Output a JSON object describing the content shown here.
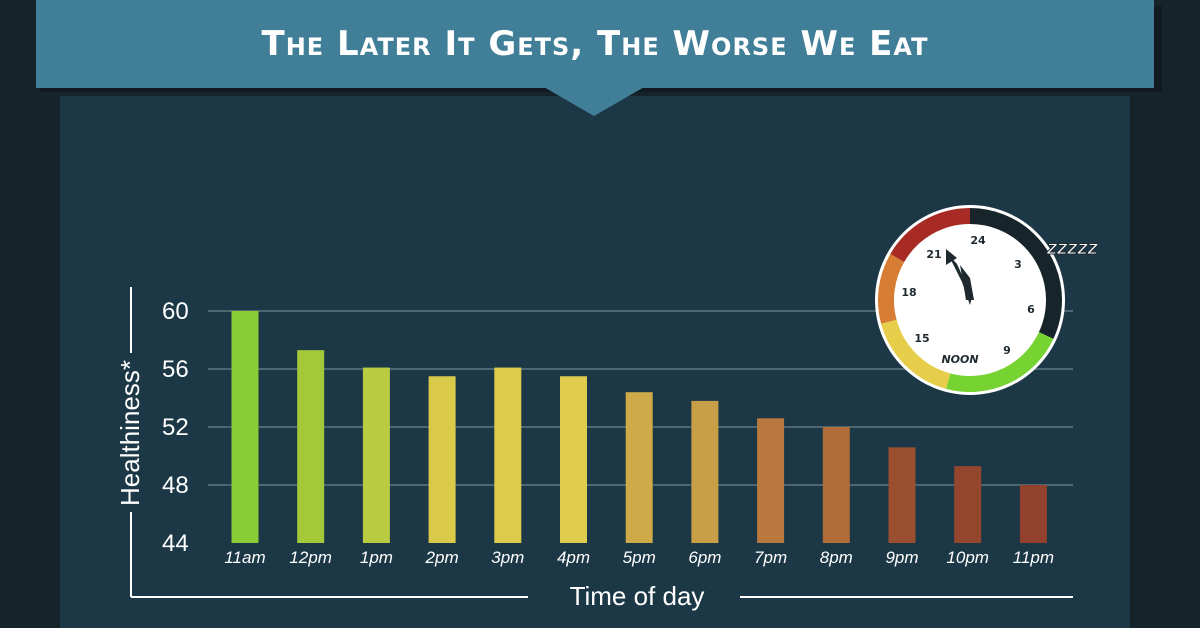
{
  "header": {
    "title": "The Later It Gets, The Worse We Eat"
  },
  "colors": {
    "background": "#15232a",
    "panel": "#1c3746",
    "banner": "#417e98",
    "grid": "#4f6570",
    "text": "#ffffff"
  },
  "clock": {
    "labels": [
      "24",
      "3",
      "6",
      "9",
      "NOON",
      "15",
      "18",
      "21"
    ],
    "zzz": "ZZZZZ",
    "colors": {
      "night": "#17252b",
      "morning": "#77d331",
      "afternoon": "#e6ce4a",
      "evening": "#d67d33",
      "late": "#a82a24"
    }
  },
  "chart_data": {
    "type": "bar",
    "categories": [
      "11am",
      "12pm",
      "1pm",
      "2pm",
      "3pm",
      "4pm",
      "5pm",
      "6pm",
      "7pm",
      "8pm",
      "9pm",
      "10pm",
      "11pm"
    ],
    "values": [
      60,
      57.3,
      56.1,
      55.5,
      56.1,
      55.5,
      54.4,
      53.8,
      52.6,
      52.0,
      50.6,
      49.3,
      48.0
    ],
    "bar_colors": [
      "#89cd36",
      "#a3c93a",
      "#b9cc41",
      "#d9cb49",
      "#ddcb4b",
      "#e0cd4e",
      "#ceab48",
      "#c89e46",
      "#b9793e",
      "#b06d38",
      "#9a4f30",
      "#94472d",
      "#91412c"
    ],
    "xlabel": "Time of day",
    "ylabel": "Healthiness*",
    "ylim": [
      44,
      60
    ],
    "yticks": [
      60,
      56,
      52,
      48,
      44
    ],
    "grid": true
  }
}
